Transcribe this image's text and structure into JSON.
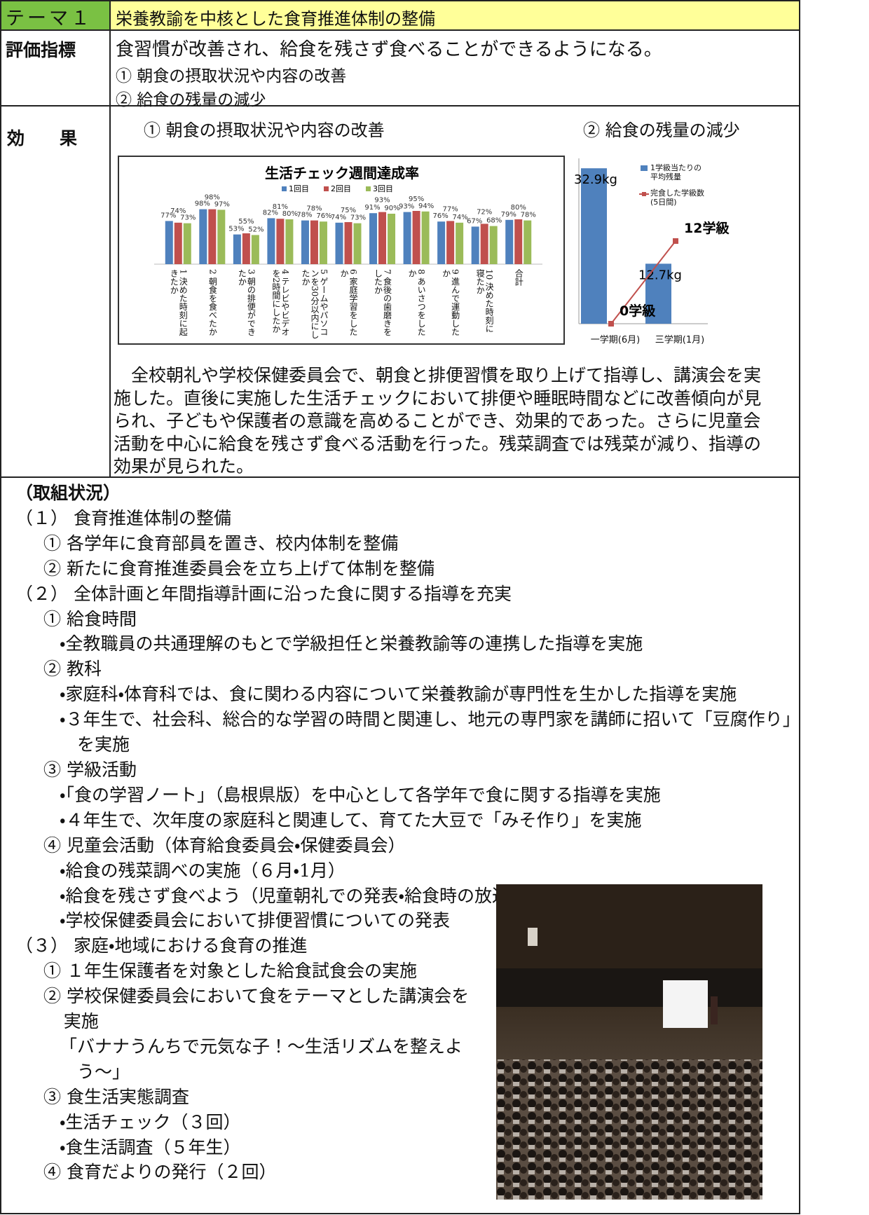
{
  "theme": {
    "label": "テーマ１",
    "title": "栄養教諭を中核とした食育推進体制の整備"
  },
  "indicator": {
    "label": "評価指標",
    "lines": [
      "食習慣が改善され、給食を残さず食べることができるようになる。",
      "① 朝食の摂取状況や内容の改善",
      "② 給食の残量の減少"
    ]
  },
  "effect": {
    "label": "効　　果",
    "headings": [
      "① 朝食の摂取状況や内容の改善",
      "② 給食の残量の減少"
    ],
    "chart1": {
      "type": "bar",
      "title": "生活チェック週間達成率",
      "categories": [
        "1 決めた時刻に起きたか",
        "2 朝食を食べたか",
        "3 朝の排便ができたか",
        "4 テレビやビデオを2時間にしたか",
        "5 ゲームやパソコンを30分以内にしたか",
        "6 家庭学習をしたか",
        "7 食後の歯磨きをしたか",
        "8 あいさつをしたか",
        "9 進んで運動したか",
        "10 決めた時刻に寝たか",
        "合計"
      ],
      "series": [
        {
          "name": "1回目",
          "color": "#4f81bd",
          "values": [
            77,
            98,
            53,
            82,
            78,
            74,
            91,
            93,
            76,
            67,
            79
          ],
          "value_labels": [
            "77%",
            "98%",
            "53%",
            "82%",
            "78%",
            "74%",
            "91%",
            "93%",
            "76%",
            "67%",
            "79%"
          ]
        },
        {
          "name": "2回目",
          "color": "#c0504d",
          "values": [
            74,
            98,
            55,
            81,
            78,
            75,
            93,
            95,
            77,
            72,
            80
          ],
          "value_labels": [
            "74%",
            "98%",
            "55%",
            "81%",
            "78%",
            "75%",
            "93%",
            "95%",
            "77%",
            "72%",
            "80%"
          ]
        },
        {
          "name": "3回目",
          "color": "#9bbb59",
          "values": [
            73,
            97,
            52,
            80,
            76,
            73,
            90,
            94,
            74,
            68,
            78
          ],
          "value_labels": [
            "73%",
            "97%",
            "52%",
            "80%",
            "76%",
            "73%",
            "90%",
            "94%",
            "74%",
            "68%",
            "78%"
          ]
        }
      ],
      "ylim": [
        0,
        100
      ]
    },
    "chart2": {
      "type": "bar-line",
      "categories": [
        "一学期(6月)",
        "三学期(1月)"
      ],
      "series": [
        {
          "name": "1学級当たりの平均残量",
          "type": "bar",
          "color": "#4f81bd",
          "values": [
            32.9,
            12.7
          ],
          "value_labels": [
            "32.9kg",
            "12.7kg"
          ]
        },
        {
          "name": "完食した学級数(5日間)",
          "type": "line",
          "axis": "y2",
          "color": "#c0504d",
          "values": [
            0,
            12
          ],
          "value_labels": [
            "0学級",
            "12学級"
          ]
        }
      ],
      "ylim": [
        0,
        35
      ],
      "y2lim": [
        0,
        24
      ]
    },
    "text": [
      "　全校朝礼や学校保健委員会で、朝食と排便習慣を取り上げて指導し、講演会を実",
      "施した。直後に実施した生活チェックにおいて排便や睡眠時間などに改善傾向が見",
      "られ、子どもや保護者の意識を高めることができ、効果的であった。さらに児童会",
      "活動を中心に給食を残さず食べる活動を行った。残菜調査では残菜が減り、指導の",
      "効果が見られた。"
    ]
  },
  "activities": {
    "heading": "（取組状況）",
    "sections": [
      {
        "title": "（１） 食育推進体制の整備",
        "items": [
          {
            "title": "① 各学年に食育部員を置き、校内体制を整備"
          },
          {
            "title": "② 新たに食育推進委員会を立ち上げて体制を整備"
          }
        ]
      },
      {
        "title": "（２） 全体計画と年間指導計画に沿った食に関する指導を充実",
        "items": [
          {
            "title": "① 給食時間",
            "bullets": [
              "・全教職員の共通理解のもとで学級担任と栄養教諭等の連携した指導を実施"
            ]
          },
          {
            "title": "② 教科",
            "bullets": [
              "・家庭科・体育科では、食に関わる内容について栄養教諭が専門性を生かした指導を実施",
              "・３年生で、社会科、総合的な学習の時間と関連し、地元の専門家を講師に招いて「豆腐作り」を実施"
            ]
          },
          {
            "title": "③ 学級活動",
            "bullets": [
              "・「食の学習ノート」（島根県版）を中心として各学年で食に関する指導を実施",
              "・４年生で、次年度の家庭科と関連して、育てた大豆で「みそ作り」を実施"
            ]
          },
          {
            "title": "④ 児童会活動（体育給食委員会・保健委員会）",
            "bullets": [
              "・給食の残菜調べの実施（６月・1月）",
              "・給食を残さず食べよう（児童朝礼での発表・給食時の放送）",
              "・学校保健委員会において排便習慣についての発表"
            ]
          }
        ]
      },
      {
        "title": "（３） 家庭・地域における食育の推進",
        "items": [
          {
            "title": "① １年生保護者を対象とした給食試食会の実施"
          },
          {
            "title": "② 学校保健委員会において食をテーマとした講演会を実施",
            "bullets": [
              "「バナナうんちで元気な子！～生活リズムを整えよう～」"
            ]
          },
          {
            "title": "③ 食生活実態調査",
            "bullets": [
              "・生活チェック（３回）",
              "・食生活調査（５年生）"
            ]
          },
          {
            "title": "④ 食育だよりの発行（２回）"
          }
        ]
      }
    ]
  }
}
